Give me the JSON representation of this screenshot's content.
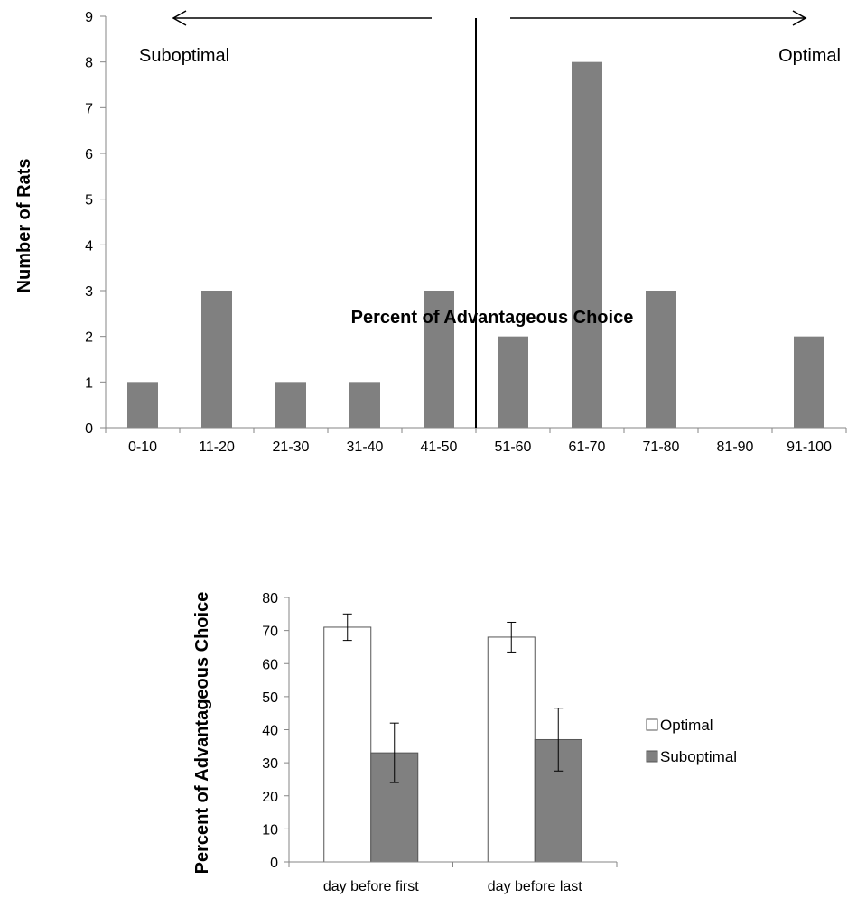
{
  "chart_data": [
    {
      "type": "bar",
      "categories": [
        "0-10",
        "11-20",
        "21-30",
        "31-40",
        "41-50",
        "51-60",
        "61-70",
        "71-80",
        "81-90",
        "91-100"
      ],
      "values": [
        1,
        3,
        1,
        1,
        3,
        2,
        8,
        3,
        0,
        2
      ],
      "xlabel": "Percent of Advantageous Choice",
      "ylabel": "Number of Rats",
      "ylim": [
        0,
        9
      ],
      "yticks": [
        "0",
        "1",
        "2",
        "3",
        "4",
        "5",
        "6",
        "7",
        "8",
        "9"
      ],
      "grid": false,
      "bar_color": "#808080",
      "annotations": {
        "left_label": "Suboptimal",
        "right_label": "Optimal"
      }
    },
    {
      "type": "bar",
      "categories": [
        "day before first",
        "day before last"
      ],
      "series": [
        {
          "name": "Optimal",
          "values": [
            71,
            68
          ],
          "errors": [
            4,
            4.5
          ],
          "color": "#ffffff"
        },
        {
          "name": "Suboptimal",
          "values": [
            33,
            37
          ],
          "errors": [
            9,
            9.5
          ],
          "color": "#808080"
        }
      ],
      "xlabel": "",
      "ylabel": "Percent of Advantageous Choice",
      "ylim": [
        0,
        80
      ],
      "yticks": [
        "0",
        "10",
        "20",
        "30",
        "40",
        "50",
        "60",
        "70",
        "80"
      ],
      "grid": false,
      "legend_position": "right"
    }
  ]
}
